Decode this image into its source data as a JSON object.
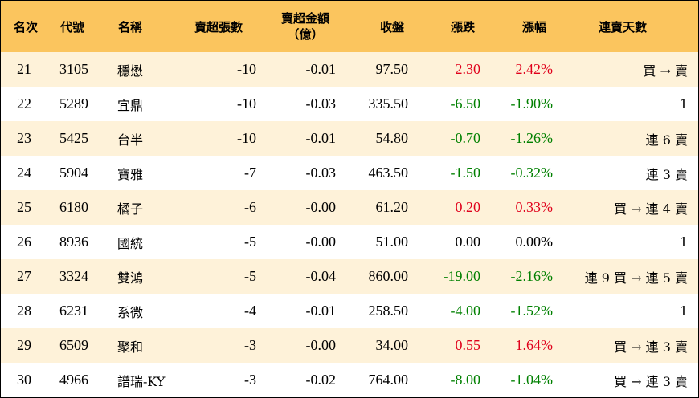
{
  "table": {
    "headers": {
      "rank": "名次",
      "code": "代號",
      "name": "名稱",
      "net_sell_lots": "賣超張數",
      "net_sell_amount_line1": "賣超金額",
      "net_sell_amount_line2": "（億）",
      "close": "收盤",
      "change": "漲跌",
      "pct": "漲幅",
      "streak": "連賣天數"
    },
    "rows": [
      {
        "rank": "21",
        "code": "3105",
        "name": "穩懋",
        "lots": "-10",
        "amount": "-0.01",
        "close": "97.50",
        "change": "2.30",
        "pct": "2.42%",
        "streak": "買 → 賣",
        "trend": "up"
      },
      {
        "rank": "22",
        "code": "5289",
        "name": "宜鼎",
        "lots": "-10",
        "amount": "-0.03",
        "close": "335.50",
        "change": "-6.50",
        "pct": "-1.90%",
        "streak": "1",
        "trend": "down"
      },
      {
        "rank": "23",
        "code": "5425",
        "name": "台半",
        "lots": "-10",
        "amount": "-0.01",
        "close": "54.80",
        "change": "-0.70",
        "pct": "-1.26%",
        "streak": "連 6 賣",
        "trend": "down"
      },
      {
        "rank": "24",
        "code": "5904",
        "name": "寶雅",
        "lots": "-7",
        "amount": "-0.03",
        "close": "463.50",
        "change": "-1.50",
        "pct": "-0.32%",
        "streak": "連 3 賣",
        "trend": "down"
      },
      {
        "rank": "25",
        "code": "6180",
        "name": "橘子",
        "lots": "-6",
        "amount": "-0.00",
        "close": "61.20",
        "change": "0.20",
        "pct": "0.33%",
        "streak": "買 → 連 4 賣",
        "trend": "up"
      },
      {
        "rank": "26",
        "code": "8936",
        "name": "國統",
        "lots": "-5",
        "amount": "-0.00",
        "close": "51.00",
        "change": "0.00",
        "pct": "0.00%",
        "streak": "1",
        "trend": "flat"
      },
      {
        "rank": "27",
        "code": "3324",
        "name": "雙鴻",
        "lots": "-5",
        "amount": "-0.04",
        "close": "860.00",
        "change": "-19.00",
        "pct": "-2.16%",
        "streak": "連 9 買 → 連 5 賣",
        "trend": "down"
      },
      {
        "rank": "28",
        "code": "6231",
        "name": "系微",
        "lots": "-4",
        "amount": "-0.01",
        "close": "258.50",
        "change": "-4.00",
        "pct": "-1.52%",
        "streak": "1",
        "trend": "down"
      },
      {
        "rank": "29",
        "code": "6509",
        "name": "聚和",
        "lots": "-3",
        "amount": "-0.00",
        "close": "34.00",
        "change": "0.55",
        "pct": "1.64%",
        "streak": "買 → 連 3 賣",
        "trend": "up"
      },
      {
        "rank": "30",
        "code": "4966",
        "name": "譜瑞-KY",
        "lots": "-3",
        "amount": "-0.02",
        "close": "764.00",
        "change": "-8.00",
        "pct": "-1.04%",
        "streak": "買 → 連 3 賣",
        "trend": "down"
      }
    ]
  },
  "colors": {
    "header_bg": "#fbc55e",
    "odd_row_bg": "#fef2d9",
    "up": "#e0001b",
    "down": "#008000"
  }
}
